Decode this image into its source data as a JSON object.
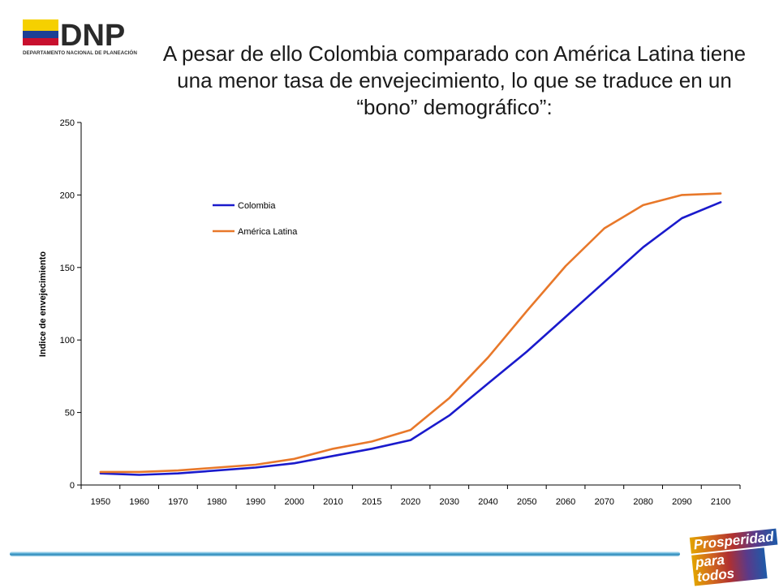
{
  "header": {
    "logo_text": "DNP",
    "logo_subtitle": "DEPARTAMENTO NACIONAL DE PLANEACIÓN",
    "title": "A pesar de ello Colombia comparado con América Latina tiene una menor tasa de envejecimiento, lo que se traduce en un “bono” demográfico”:"
  },
  "footer": {
    "brand_line1": "Prosperidad",
    "brand_line2": "para todos"
  },
  "chart_data": {
    "type": "line",
    "title": "",
    "xlabel": "",
    "ylabel": "Indice de envejecimiento",
    "categories": [
      "1950",
      "1960",
      "1970",
      "1980",
      "1990",
      "2000",
      "2010",
      "2015",
      "2020",
      "2030",
      "2040",
      "2050",
      "2060",
      "2070",
      "2080",
      "2090",
      "2100"
    ],
    "ylim": [
      0,
      250
    ],
    "yticks": [
      0,
      50,
      100,
      150,
      200,
      250
    ],
    "grid": false,
    "legend_position": "upper-left",
    "series": [
      {
        "name": "Colombia",
        "color": "#1a1acc",
        "values": [
          8,
          7,
          8,
          10,
          12,
          15,
          20,
          25,
          31,
          48,
          70,
          92,
          116,
          140,
          164,
          184,
          195
        ]
      },
      {
        "name": "América Latina",
        "color": "#e8782a",
        "values": [
          9,
          9,
          10,
          12,
          14,
          18,
          25,
          30,
          38,
          60,
          88,
          120,
          151,
          177,
          193,
          200,
          201
        ]
      }
    ]
  }
}
